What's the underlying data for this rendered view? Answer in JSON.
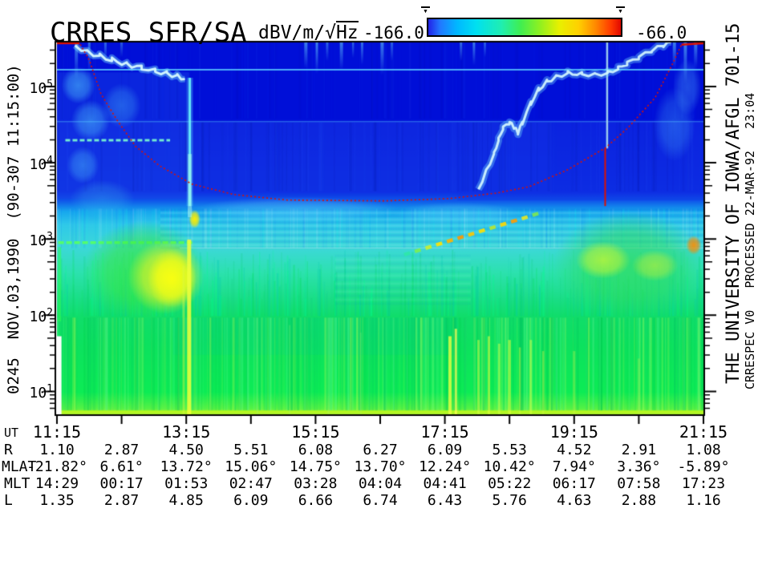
{
  "header": {
    "title": "CRRES SFR/SA",
    "units_prefix": "dBV/m/",
    "units_sqrt": "√",
    "units_hz": "Hz",
    "colorbar_min": "-166.0",
    "colorbar_max": "-66.0",
    "marker_glyph": "▼"
  },
  "left_axis": {
    "rotated_label": "0245  NOV.03,1990  (90-307 11:15:00)"
  },
  "right_margin": {
    "line1": "THE UNIVERSITY OF IOWA/AFGL 701-15",
    "line2": "CRRESPEC V0   PROCESSED 22-MAR-92   23:04"
  },
  "chart_data": {
    "type": "heatmap",
    "subtype": "frequency-time spectrogram",
    "title": "CRRES SFR/SA",
    "value_unit": "dBV/m/√Hz",
    "value_range": [
      -166.0,
      -66.0
    ],
    "x_axis": {
      "label": "UT",
      "start": "11:15",
      "end": "21:15",
      "hours_span": 10,
      "tick_every_hours": 1,
      "labeled_every_hours": 2,
      "tick_labels": [
        "11:15",
        "13:15",
        "15:15",
        "17:15",
        "19:15",
        "21:15"
      ]
    },
    "y_axis": {
      "scale": "log",
      "unit": "Hz",
      "tick_base": "10",
      "decade_exponents": [
        5,
        4,
        3,
        2,
        1
      ],
      "log_top": 5.577,
      "log_bot": 0.7
    },
    "colorbar": {
      "gradient": [
        [
          0,
          "#2222e8"
        ],
        [
          0.06,
          "#2277ff"
        ],
        [
          0.15,
          "#00b8ff"
        ],
        [
          0.25,
          "#00e0f0"
        ],
        [
          0.38,
          "#20eeb0"
        ],
        [
          0.48,
          "#40ee50"
        ],
        [
          0.58,
          "#90f020"
        ],
        [
          0.68,
          "#e8f000"
        ],
        [
          0.78,
          "#ffd000"
        ],
        [
          0.87,
          "#ff8800"
        ],
        [
          0.95,
          "#ff3800"
        ],
        [
          1,
          "#e00800"
        ]
      ]
    },
    "ephemeris": {
      "rows": [
        {
          "label": "UT",
          "step": 2,
          "values": [
            "11:15",
            "13:15",
            "15:15",
            "17:15",
            "19:15",
            "21:15"
          ]
        },
        {
          "label": "R",
          "step": 1,
          "values": [
            "1.10",
            "2.87",
            "4.50",
            "5.51",
            "6.08",
            "6.27",
            "6.09",
            "5.53",
            "4.52",
            "2.91",
            "1.08"
          ]
        },
        {
          "label": "MLAT",
          "step": 1,
          "values": [
            "-21.82°",
            "6.61°",
            "13.72°",
            "15.06°",
            "14.75°",
            "13.70°",
            "12.24°",
            "10.42°",
            "7.94°",
            "3.36°",
            "-5.89°"
          ]
        },
        {
          "label": "MLT",
          "step": 1,
          "values": [
            "14:29",
            "00:17",
            "01:53",
            "02:47",
            "03:28",
            "04:04",
            "04:41",
            "05:22",
            "06:17",
            "07:58",
            "17:23"
          ]
        },
        {
          "label": "L",
          "step": 1,
          "values": [
            "1.35",
            "2.87",
            "4.85",
            "6.09",
            "6.66",
            "6.74",
            "6.43",
            "5.76",
            "4.63",
            "2.88",
            "1.16"
          ]
        }
      ]
    },
    "features": {
      "fce_color": "#dd1100",
      "base_gradient": [
        [
          0,
          "#000fd8"
        ],
        [
          0.205,
          "#000fd8"
        ],
        [
          0.215,
          "#0a1ede"
        ],
        [
          0.4,
          "#0c2ce2"
        ],
        [
          0.425,
          "#0f55ea"
        ],
        [
          0.455,
          "#17a8ee"
        ],
        [
          0.49,
          "#2fc9e9"
        ],
        [
          0.553,
          "#3cd8d8"
        ],
        [
          0.62,
          "#2ce2ae"
        ],
        [
          0.7,
          "#18dd80"
        ],
        [
          0.737,
          "#10dd6a"
        ],
        [
          0.82,
          "#0ce25e"
        ],
        [
          0.94,
          "#0cec55"
        ],
        [
          0.985,
          "#55f245"
        ],
        [
          1,
          "#b8f428"
        ]
      ],
      "rects": [
        {
          "x": 0,
          "y": 0.08,
          "w": 0.205,
          "h": 0.34,
          "c": "#1a46e8",
          "a": 0.4
        },
        {
          "x": 0.205,
          "y": 0.215,
          "w": 0.56,
          "h": 0.19,
          "c": "#1336e6",
          "a": 0.35
        },
        {
          "x": 0.62,
          "y": 0.215,
          "w": 0.38,
          "h": 0.21,
          "c": "#1030e4",
          "a": 0.3
        },
        {
          "x": 0.18,
          "y": 0.74,
          "w": 0.44,
          "h": 0.1,
          "c": "#00c9a0",
          "a": 0.15
        }
      ],
      "noise": [
        {
          "y0": 0.0,
          "y1": 0.205,
          "n": 130,
          "w": [
            1,
            3
          ],
          "a": [
            0.03,
            0.09
          ],
          "cols": [
            "#0030ff",
            "#000090",
            "#2a60ff"
          ]
        },
        {
          "y0": 0.215,
          "y1": 0.4,
          "n": 150,
          "w": [
            1,
            3
          ],
          "a": [
            0.04,
            0.11
          ],
          "cols": [
            "#2b5cff",
            "#001090"
          ]
        },
        {
          "y0": 0.447,
          "y1": 0.553,
          "n": 240,
          "w": [
            1,
            2.5
          ],
          "a": [
            0.05,
            0.13
          ],
          "cols": [
            "#ffffff",
            "#00ffee",
            "#0060ff"
          ]
        },
        {
          "y0": 0.556,
          "y1": 0.736,
          "n": 430,
          "w": [
            1,
            2.5
          ],
          "a": [
            0.1,
            0.3
          ],
          "cols": [
            "#00e058",
            "#00ff8c",
            "#00c8b4",
            "#12d080"
          ],
          "part": 0.75
        },
        {
          "y0": 0.74,
          "y1": 0.99,
          "n": 520,
          "w": [
            1,
            3
          ],
          "a": [
            0.08,
            0.26
          ],
          "cols": [
            "#00d04a",
            "#70ff9c",
            "#b8ff50",
            "#00bc62"
          ]
        }
      ],
      "stripes": [
        {
          "y0": 0.447,
          "y1": 0.556,
          "x0": 0.16,
          "x1": 1,
          "step": 4,
          "c1": "rgba(210,255,255,0.12)",
          "c2": "rgba(0,70,220,0.10)"
        },
        {
          "y0": 0.57,
          "y1": 0.7,
          "x0": 0.43,
          "x1": 0.64,
          "step": 5,
          "c1": "rgba(190,255,240,0.08)",
          "c2": "rgba(0,120,200,0.06)"
        }
      ],
      "hlines": [
        {
          "y": 0.0735,
          "x0": 0,
          "x1": 1,
          "c": "#58c8ff",
          "w": 2,
          "a": 0.85
        },
        {
          "y": 0.213,
          "x0": 0,
          "x1": 1,
          "c": "#58c8ff",
          "w": 1.5,
          "a": 0.4
        },
        {
          "y": 0.263,
          "x0": 0.013,
          "x1": 0.175,
          "c": "#7dffcf",
          "w": 3,
          "a": 0.9,
          "dash": [
            6,
            3
          ]
        },
        {
          "y": 0.538,
          "x0": 0.002,
          "x1": 0.21,
          "c": "#55ff66",
          "w": 3.5,
          "a": 0.95,
          "dash": [
            7,
            3
          ]
        },
        {
          "y": 0.553,
          "x0": 0.19,
          "x1": 1,
          "c": "#b9fff2",
          "w": 1.5,
          "a": 0.45
        },
        {
          "y": 0.993,
          "x0": 0.007,
          "x1": 1,
          "c": "#c8f818",
          "w": 3,
          "a": 0.7
        }
      ],
      "hangs": [
        [
          0.03,
          0.1,
          0.5,
          4
        ],
        [
          0.05,
          0.08,
          0.45,
          3
        ],
        [
          0.075,
          0.055,
          0.4,
          3
        ],
        [
          0.1,
          0.04,
          0.35,
          3
        ],
        [
          0.385,
          0.07,
          0.5,
          4
        ],
        [
          0.402,
          0.085,
          0.55,
          3
        ],
        [
          0.418,
          0.05,
          0.4,
          3
        ],
        [
          0.44,
          0.075,
          0.5,
          4
        ],
        [
          0.458,
          0.042,
          0.4,
          2.5
        ],
        [
          0.472,
          0.06,
          0.45,
          3
        ],
        [
          0.503,
          0.088,
          0.5,
          4
        ],
        [
          0.518,
          0.05,
          0.35,
          3
        ],
        [
          0.625,
          0.05,
          0.45,
          3
        ],
        [
          0.645,
          0.062,
          0.5,
          3
        ],
        [
          0.662,
          0.04,
          0.4,
          2.5
        ],
        [
          0.955,
          0.07,
          0.5,
          4
        ],
        [
          0.972,
          0.11,
          0.55,
          4
        ],
        [
          0.988,
          0.07,
          0.5,
          4
        ]
      ],
      "hang_color": "#74e6ff",
      "blobs": [
        {
          "cx": 0.135,
          "cy": 0.615,
          "rx": 0.095,
          "ry": 0.135,
          "c": "#38e83c",
          "a": 0.75
        },
        {
          "cx": 0.168,
          "cy": 0.63,
          "rx": 0.058,
          "ry": 0.1,
          "c": "#e8f428",
          "a": 0.85
        },
        {
          "cx": 0.178,
          "cy": 0.635,
          "rx": 0.038,
          "ry": 0.078,
          "c": "#fbff10",
          "a": 0.95
        },
        {
          "cx": 0.213,
          "cy": 0.475,
          "rx": 0.009,
          "ry": 0.025,
          "c": "#ffee00",
          "a": 1
        },
        {
          "cx": 0.885,
          "cy": 0.6,
          "rx": 0.118,
          "ry": 0.145,
          "c": "#30dd58",
          "a": 0.7
        },
        {
          "cx": 0.845,
          "cy": 0.585,
          "rx": 0.042,
          "ry": 0.05,
          "c": "#c8f832",
          "a": 0.75
        },
        {
          "cx": 0.925,
          "cy": 0.6,
          "rx": 0.036,
          "ry": 0.042,
          "c": "#b4f03c",
          "a": 0.65
        },
        {
          "cx": 0.985,
          "cy": 0.545,
          "rx": 0.012,
          "ry": 0.026,
          "c": "#ff8c00",
          "a": 0.9
        },
        {
          "cx": 0.033,
          "cy": 0.115,
          "rx": 0.026,
          "ry": 0.05,
          "c": "#58d8ff",
          "a": 0.5
        },
        {
          "cx": 0.052,
          "cy": 0.21,
          "rx": 0.03,
          "ry": 0.055,
          "c": "#58d8ff",
          "a": 0.45
        },
        {
          "cx": 0.04,
          "cy": 0.33,
          "rx": 0.025,
          "ry": 0.05,
          "c": "#55d0ff",
          "a": 0.4
        },
        {
          "cx": 0.1,
          "cy": 0.17,
          "rx": 0.03,
          "ry": 0.06,
          "c": "#50ccff",
          "a": 0.35
        },
        {
          "cx": 0.07,
          "cy": 0.42,
          "rx": 0.05,
          "ry": 0.05,
          "c": "#40c8f0",
          "a": 0.3
        },
        {
          "cx": 0.37,
          "cy": 0.45,
          "rx": 0.16,
          "ry": 0.035,
          "c": "#7ce8ff",
          "a": 0.3
        },
        {
          "cx": 0.62,
          "cy": 0.46,
          "rx": 0.1,
          "ry": 0.03,
          "c": "#7ce8ff",
          "a": 0.25
        },
        {
          "cx": 0.955,
          "cy": 0.22,
          "rx": 0.032,
          "ry": 0.1,
          "c": "#55ccff",
          "a": 0.3
        },
        {
          "cx": 0.975,
          "cy": 0.12,
          "rx": 0.022,
          "ry": 0.075,
          "c": "#66d8ff",
          "a": 0.3
        }
      ],
      "diag": {
        "x0": 0.537,
        "y0": 0.571,
        "x1": 0.752,
        "y1": 0.456,
        "n": 13,
        "w": 4.5,
        "cols": [
          "#2fe8a8",
          "#7df050",
          "#c8f030",
          "#ffe400",
          "#ffb400",
          "#ff9800",
          "#ffc800",
          "#ffe000",
          "#b8e830",
          "#ffd800",
          "#ff9c00",
          "#e8e820",
          "#7de850"
        ]
      },
      "vstreaks": [
        {
          "x": 0.2055,
          "y0": 0.095,
          "y1": 0.44,
          "c": "#70ffff",
          "w": 3,
          "a": 0.85,
          "glow": 8
        },
        {
          "x": 0.2055,
          "y0": 0.3,
          "y1": 0.47,
          "c": "#b0ffee",
          "w": 5,
          "a": 0.5
        },
        {
          "x": 0.851,
          "y0": 0,
          "y1": 0.285,
          "c": "#aadcf0",
          "w": 2.5,
          "a": 0.9
        },
        {
          "x": 0.2045,
          "y0": 0.53,
          "y1": 1,
          "c": "#f2ff38",
          "w": 5,
          "a": 0.85
        },
        {
          "x": 0.196,
          "y0": 0.6,
          "y1": 1,
          "c": "#d8f840",
          "w": 3,
          "a": 0.45
        },
        {
          "x": 0.004,
          "y0": 0.55,
          "y1": 0.75,
          "c": "#30ff50",
          "w": 4,
          "a": 0.5
        },
        {
          "x": 0.608,
          "y0": 0.79,
          "y1": 1,
          "c": "#eaff42",
          "w": 4,
          "a": 0.8
        },
        {
          "x": 0.617,
          "y0": 0.77,
          "y1": 1,
          "c": "#ffff55",
          "w": 3,
          "a": 0.7
        },
        {
          "x": 0.652,
          "y0": 0.8,
          "y1": 1,
          "c": "#d8ff45",
          "w": 3,
          "a": 0.5
        },
        {
          "x": 0.668,
          "y0": 0.79,
          "y1": 1,
          "c": "#e4ff40",
          "w": 3,
          "a": 0.55
        },
        {
          "x": 0.684,
          "y0": 0.81,
          "y1": 1,
          "c": "#d0ff45",
          "w": 3,
          "a": 0.5
        },
        {
          "x": 0.7,
          "y0": 0.8,
          "y1": 1,
          "c": "#e0ff40",
          "w": 3.5,
          "a": 0.55
        },
        {
          "x": 0.716,
          "y0": 0.82,
          "y1": 1,
          "c": "#ccf840",
          "w": 2.5,
          "a": 0.45
        },
        {
          "x": 0.733,
          "y0": 0.8,
          "y1": 1,
          "c": "#d8ff45",
          "w": 3,
          "a": 0.5
        },
        {
          "x": 0.752,
          "y0": 0.83,
          "y1": 1,
          "c": "#ccf545",
          "w": 2.5,
          "a": 0.4
        },
        {
          "x": 0.8,
          "y0": 0.83,
          "y1": 1,
          "c": "#c8f548",
          "w": 3,
          "a": 0.35
        },
        {
          "x": 0.9,
          "y0": 0.85,
          "y1": 1,
          "c": "#c0f048",
          "w": 3,
          "a": 0.3
        },
        {
          "x": 0.31,
          "y0": 0.74,
          "y1": 1,
          "c": "#a8f080",
          "w": 2,
          "a": 0.25
        },
        {
          "x": 0.36,
          "y0": 0.76,
          "y1": 1,
          "c": "#a8f080",
          "w": 2,
          "a": 0.22
        },
        {
          "x": 0.42,
          "y0": 0.74,
          "y1": 1,
          "c": "#b0f080",
          "w": 2.5,
          "a": 0.25
        },
        {
          "x": 0.47,
          "y0": 0.78,
          "y1": 1,
          "c": "#a8f080",
          "w": 2,
          "a": 0.2
        }
      ],
      "red_vline": {
        "x": 0.848,
        "y0": 0.285,
        "y1": 0.44,
        "w": 2
      },
      "uhr_left": [
        [
          0.028,
          0.008
        ],
        [
          0.047,
          0.025
        ],
        [
          0.066,
          0.036
        ],
        [
          0.085,
          0.047
        ],
        [
          0.108,
          0.058
        ],
        [
          0.131,
          0.068
        ],
        [
          0.152,
          0.077
        ],
        [
          0.17,
          0.083
        ],
        [
          0.186,
          0.09
        ],
        [
          0.198,
          0.097
        ]
      ],
      "uhr_right": [
        [
          0.652,
          0.395
        ],
        [
          0.664,
          0.345
        ],
        [
          0.676,
          0.3
        ],
        [
          0.683,
          0.262
        ],
        [
          0.69,
          0.23
        ],
        [
          0.7,
          0.215
        ],
        [
          0.707,
          0.228
        ],
        [
          0.713,
          0.243
        ],
        [
          0.72,
          0.215
        ],
        [
          0.733,
          0.163
        ],
        [
          0.745,
          0.127
        ],
        [
          0.758,
          0.105
        ],
        [
          0.772,
          0.092
        ],
        [
          0.79,
          0.082
        ],
        [
          0.812,
          0.085
        ],
        [
          0.832,
          0.086
        ],
        [
          0.852,
          0.082
        ],
        [
          0.868,
          0.07
        ],
        [
          0.882,
          0.056
        ],
        [
          0.9,
          0.04
        ],
        [
          0.92,
          0.022
        ],
        [
          0.938,
          0.008
        ],
        [
          0.95,
          0.0
        ]
      ],
      "fce": [
        [
          0.0,
          0.002
        ],
        [
          0.035,
          0.002
        ],
        [
          0.05,
          0.047
        ],
        [
          0.068,
          0.138
        ],
        [
          0.093,
          0.209
        ],
        [
          0.122,
          0.28
        ],
        [
          0.159,
          0.332
        ],
        [
          0.209,
          0.381
        ],
        [
          0.274,
          0.409
        ],
        [
          0.357,
          0.424
        ],
        [
          0.507,
          0.426
        ],
        [
          0.606,
          0.42
        ],
        [
          0.68,
          0.405
        ],
        [
          0.73,
          0.388
        ],
        [
          0.788,
          0.344
        ],
        [
          0.848,
          0.284
        ],
        [
          0.883,
          0.23
        ],
        [
          0.925,
          0.149
        ],
        [
          0.951,
          0.062
        ],
        [
          0.966,
          0.006
        ],
        [
          1.0,
          0.002
        ]
      ],
      "white_gap": {
        "x": 0,
        "y": 0.79,
        "w": 0.007,
        "h": 0.21
      }
    }
  }
}
